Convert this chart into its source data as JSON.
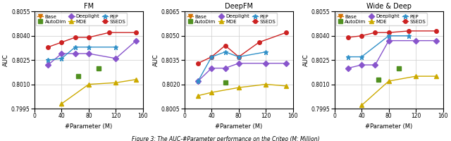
{
  "panels": [
    {
      "title": "FM",
      "ylim": [
        0.7995,
        0.8055
      ],
      "yticks": [
        0.7995,
        0.801,
        0.8025,
        0.804,
        0.8055
      ],
      "series": {
        "Base": {
          "x": [],
          "y": [],
          "color": "#d47000",
          "marker": "v",
          "linestyle": "-"
        },
        "MDE": {
          "x": [
            40,
            80,
            120,
            150
          ],
          "y": [
            0.7998,
            0.801,
            0.8011,
            0.8013
          ],
          "color": "#ccaa00",
          "marker": "^",
          "linestyle": "-"
        },
        "AutoDim": {
          "x": [
            65,
            95
          ],
          "y": [
            0.8015,
            0.802
          ],
          "color": "#509020",
          "marker": "s",
          "linestyle": "none"
        },
        "PEP": {
          "x": [
            20,
            40,
            60,
            80,
            120
          ],
          "y": [
            0.8025,
            0.8026,
            0.8033,
            0.8033,
            0.8033
          ],
          "color": "#3090c8",
          "marker": "*",
          "linestyle": "-"
        },
        "Deeplight": {
          "x": [
            20,
            40,
            60,
            80,
            120,
            150
          ],
          "y": [
            0.8022,
            0.8029,
            0.8029,
            0.8029,
            0.8026,
            0.8037
          ],
          "color": "#8855cc",
          "marker": "D",
          "linestyle": "-"
        },
        "SSEDS": {
          "x": [
            20,
            40,
            60,
            80,
            110,
            150
          ],
          "y": [
            0.8033,
            0.8036,
            0.8039,
            0.8039,
            0.8042,
            0.8042
          ],
          "color": "#cc2222",
          "marker": "o",
          "linestyle": "-"
        }
      }
    },
    {
      "title": "DeepFM",
      "ylim": [
        0.8005,
        0.8065
      ],
      "yticks": [
        0.8005,
        0.802,
        0.8035,
        0.805,
        0.8065
      ],
      "series": {
        "Base": {
          "x": [],
          "y": [],
          "color": "#d47000",
          "marker": "v",
          "linestyle": "-"
        },
        "MDE": {
          "x": [
            20,
            40,
            80,
            120,
            150
          ],
          "y": [
            0.8013,
            0.8015,
            0.8018,
            0.802,
            0.8019
          ],
          "color": "#ccaa00",
          "marker": "^",
          "linestyle": "-"
        },
        "AutoDim": {
          "x": [
            60
          ],
          "y": [
            0.8021
          ],
          "color": "#509020",
          "marker": "s",
          "linestyle": "none"
        },
        "PEP": {
          "x": [
            20,
            40,
            60,
            80,
            120
          ],
          "y": [
            0.8022,
            0.8037,
            0.804,
            0.8037,
            0.804
          ],
          "color": "#3090c8",
          "marker": "*",
          "linestyle": "-"
        },
        "Deeplight": {
          "x": [
            20,
            40,
            60,
            80,
            120,
            150
          ],
          "y": [
            0.8022,
            0.803,
            0.803,
            0.8033,
            0.8033,
            0.8033
          ],
          "color": "#8855cc",
          "marker": "D",
          "linestyle": "-"
        },
        "SSEDS": {
          "x": [
            20,
            40,
            60,
            80,
            110,
            150
          ],
          "y": [
            0.8033,
            0.8037,
            0.8044,
            0.8037,
            0.8046,
            0.8052
          ],
          "color": "#cc2222",
          "marker": "o",
          "linestyle": "-"
        }
      }
    },
    {
      "title": "Wide & Deep",
      "ylim": [
        0.7995,
        0.8055
      ],
      "yticks": [
        0.7995,
        0.801,
        0.8025,
        0.804,
        0.8055
      ],
      "series": {
        "Base": {
          "x": [],
          "y": [],
          "color": "#d47000",
          "marker": "v",
          "linestyle": "-"
        },
        "MDE": {
          "x": [
            40,
            80,
            120,
            150
          ],
          "y": [
            0.7997,
            0.8012,
            0.8015,
            0.8015
          ],
          "color": "#ccaa00",
          "marker": "^",
          "linestyle": "-"
        },
        "AutoDim": {
          "x": [
            65,
            95
          ],
          "y": [
            0.8013,
            0.802
          ],
          "color": "#509020",
          "marker": "s",
          "linestyle": "none"
        },
        "PEP": {
          "x": [
            20,
            40,
            80,
            110
          ],
          "y": [
            0.8027,
            0.8027,
            0.804,
            0.804
          ],
          "color": "#3090c8",
          "marker": "*",
          "linestyle": "-"
        },
        "Deeplight": {
          "x": [
            20,
            40,
            60,
            80,
            120,
            150
          ],
          "y": [
            0.802,
            0.8022,
            0.8022,
            0.8037,
            0.8037,
            0.8037
          ],
          "color": "#8855cc",
          "marker": "D",
          "linestyle": "-"
        },
        "SSEDS": {
          "x": [
            20,
            40,
            60,
            80,
            110,
            150
          ],
          "y": [
            0.8039,
            0.804,
            0.8042,
            0.8042,
            0.8043,
            0.8043
          ],
          "color": "#cc2222",
          "marker": "o",
          "linestyle": "-"
        }
      }
    }
  ],
  "xlabel": "#Parameter (M)",
  "ylabel": "AUC",
  "caption": "Figure 3: The AUC-#Parameter performance on the Criteo (M: Million)",
  "legend_order": [
    "Base",
    "AutoDim",
    "Deeplight",
    "MDE",
    "PEP",
    "SSEDS"
  ],
  "marker_sizes": {
    "Base": 4,
    "MDE": 5,
    "AutoDim": 5,
    "PEP": 5,
    "Deeplight": 4,
    "SSEDS": 4
  },
  "figsize": [
    6.4,
    2.0
  ],
  "dpi": 100
}
